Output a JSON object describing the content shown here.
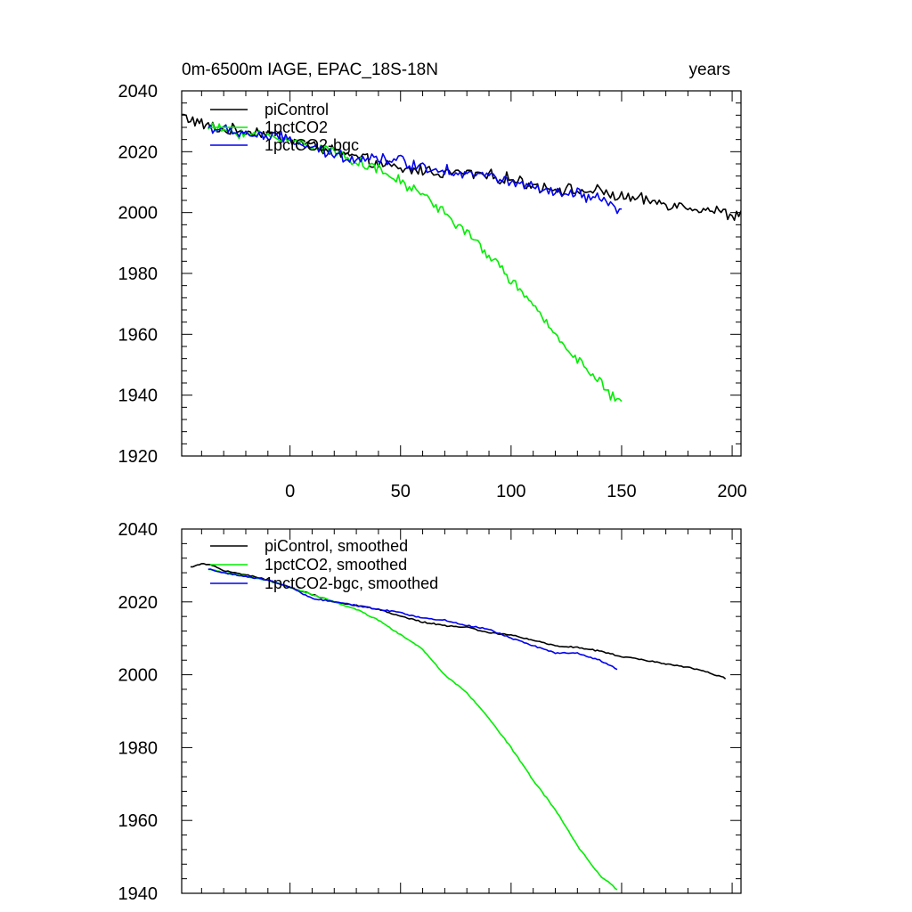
{
  "chart_data": [
    {
      "type": "line",
      "title": "0m-6500m IAGE, EPAC_18S-18N",
      "units": "years",
      "xlim": [
        -49,
        204
      ],
      "ylim": [
        1920,
        2040
      ],
      "xticks": [
        0,
        50,
        100,
        150,
        200
      ],
      "yticks": [
        1920,
        1940,
        1960,
        1980,
        2000,
        2020,
        2040
      ],
      "series": [
        {
          "name": "piControl",
          "color": "#000000",
          "x": [
            -49,
            -40,
            -30,
            -20,
            -10,
            0,
            10,
            20,
            30,
            40,
            50,
            60,
            70,
            80,
            90,
            100,
            110,
            120,
            130,
            140,
            150,
            160,
            170,
            180,
            190,
            200,
            204
          ],
          "y": [
            2032,
            2029,
            2027,
            2027,
            2026,
            2024,
            2022,
            2020,
            2018,
            2016,
            2014,
            2014,
            2013,
            2013,
            2012,
            2011,
            2009,
            2008,
            2007,
            2007,
            2005,
            2004,
            2003,
            2002,
            2001,
            1999,
            1999
          ],
          "noise": 1.6
        },
        {
          "name": "1pctCO2",
          "color": "#00ee00",
          "x": [
            -37,
            -30,
            -20,
            -10,
            0,
            10,
            20,
            30,
            40,
            50,
            60,
            70,
            80,
            90,
            100,
            110,
            120,
            130,
            140,
            145,
            150
          ],
          "y": [
            2028,
            2027,
            2026,
            2025,
            2024,
            2022,
            2020,
            2017,
            2014,
            2010,
            2006,
            2000,
            1993,
            1986,
            1978,
            1969,
            1960,
            1952,
            1944,
            1940,
            1937
          ],
          "noise": 1.4
        },
        {
          "name": "1pctCO2-bgc",
          "color": "#0000ee",
          "x": [
            -37,
            -30,
            -20,
            -10,
            0,
            10,
            20,
            30,
            40,
            50,
            60,
            70,
            80,
            90,
            100,
            110,
            120,
            130,
            140,
            145,
            150
          ],
          "y": [
            2028,
            2027,
            2026,
            2025,
            2024,
            2021,
            2019,
            2018,
            2018,
            2017,
            2015,
            2014,
            2013,
            2012,
            2010,
            2008,
            2006,
            2006,
            2004,
            2002,
            2001
          ],
          "noise": 1.6
        }
      ]
    },
    {
      "type": "line",
      "xlim": [
        -49,
        204
      ],
      "ylim": [
        1940,
        2040
      ],
      "yticks": [
        1940,
        1960,
        1980,
        2000,
        2020,
        2040
      ],
      "series": [
        {
          "name": "piControl, smoothed",
          "color": "#000000",
          "x": [
            -45,
            -40,
            -35,
            -30,
            -25,
            -20,
            -10,
            0,
            10,
            20,
            30,
            40,
            50,
            60,
            70,
            80,
            90,
            100,
            110,
            120,
            130,
            140,
            150,
            160,
            170,
            180,
            190,
            197
          ],
          "y": [
            2029.5,
            2030.5,
            2030,
            2028.5,
            2028,
            2027.5,
            2026,
            2024,
            2022,
            2020,
            2019,
            2018,
            2016,
            2014.5,
            2013.5,
            2013,
            2011.5,
            2011,
            2009.5,
            2008,
            2007.5,
            2006.5,
            2005,
            2004,
            2003,
            2002,
            2000.5,
            1999
          ]
        },
        {
          "name": "1pctCO2, smoothed",
          "color": "#00ee00",
          "x": [
            -37,
            -30,
            -20,
            -10,
            0,
            10,
            20,
            30,
            40,
            50,
            60,
            70,
            80,
            90,
            100,
            110,
            120,
            130,
            140,
            148
          ],
          "y": [
            2029,
            2028,
            2027,
            2026,
            2024,
            2022,
            2020,
            2018,
            2015,
            2011,
            2007,
            2000,
            1995,
            1988,
            1980,
            1971,
            1963,
            1953,
            1945,
            1941
          ]
        },
        {
          "name": "1pctCO2-bgc, smoothed",
          "color": "#0000ee",
          "x": [
            -37,
            -30,
            -20,
            -10,
            0,
            10,
            20,
            30,
            40,
            50,
            60,
            70,
            80,
            90,
            100,
            110,
            120,
            130,
            140,
            148
          ],
          "y": [
            2029,
            2028,
            2027,
            2026,
            2024,
            2021,
            2020,
            2019,
            2018,
            2017,
            2015.5,
            2015,
            2013.5,
            2012.5,
            2010,
            2008,
            2006,
            2006,
            2004,
            2001.5
          ]
        }
      ]
    }
  ]
}
